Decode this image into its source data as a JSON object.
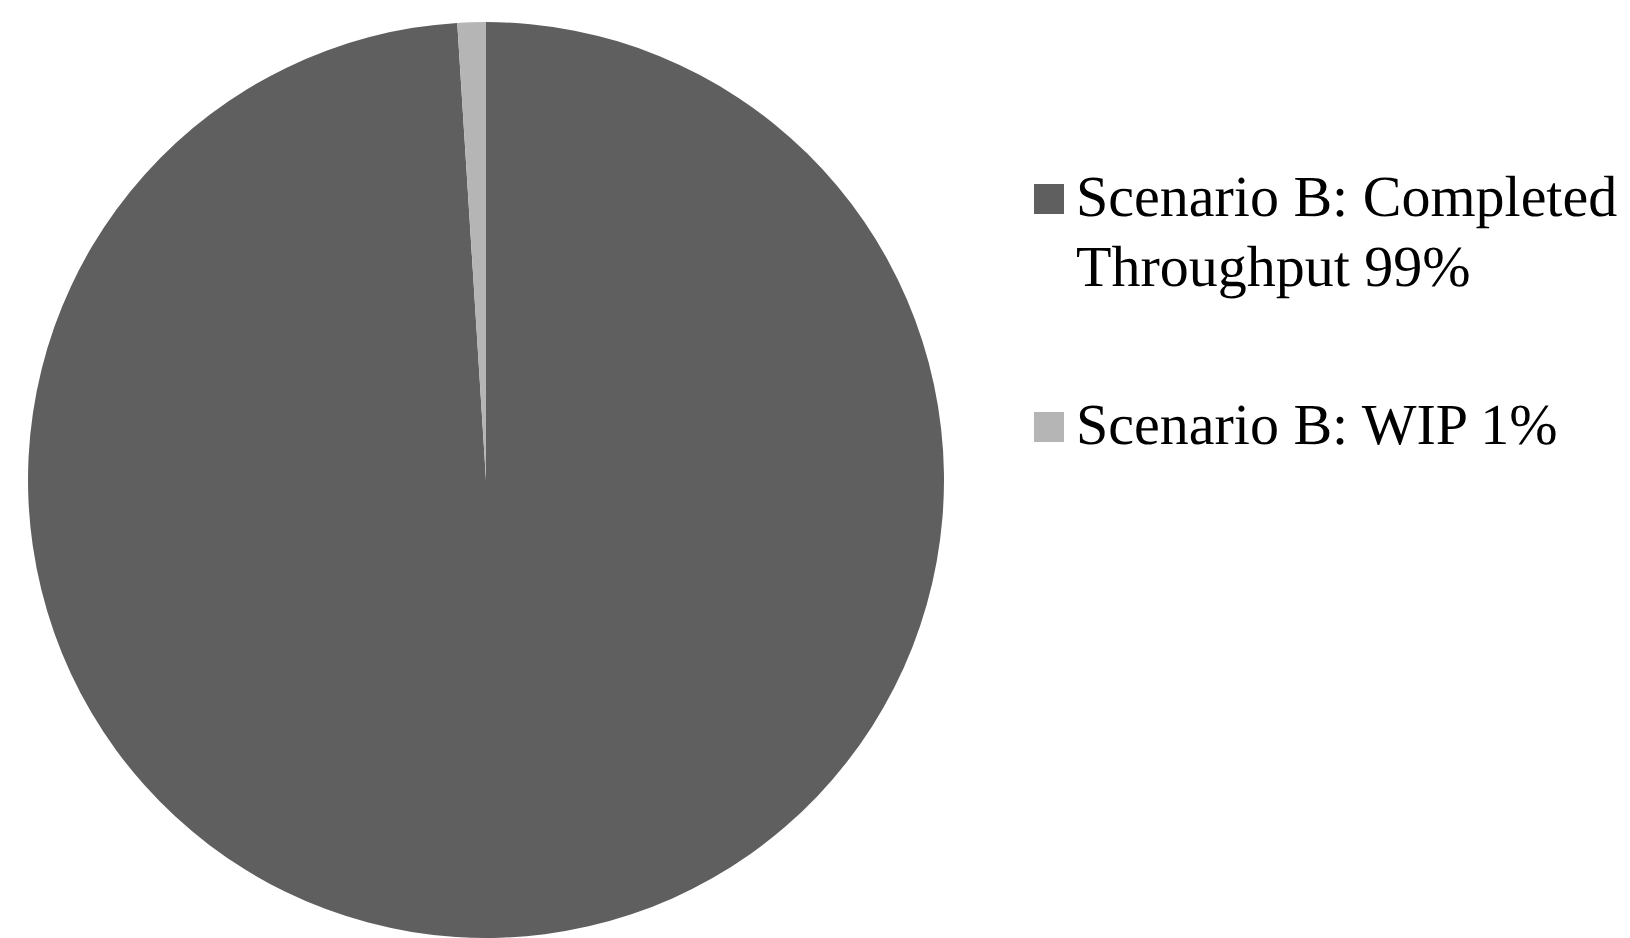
{
  "chart_data": {
    "type": "pie",
    "categories": [
      "Scenario B: Completed Throughput",
      "Scenario B: WIP"
    ],
    "values": [
      99,
      1
    ],
    "colors": [
      "#5f5f5f",
      "#b5b5b5"
    ],
    "value_labels": [
      "99%",
      "1%"
    ],
    "legend": "right"
  }
}
